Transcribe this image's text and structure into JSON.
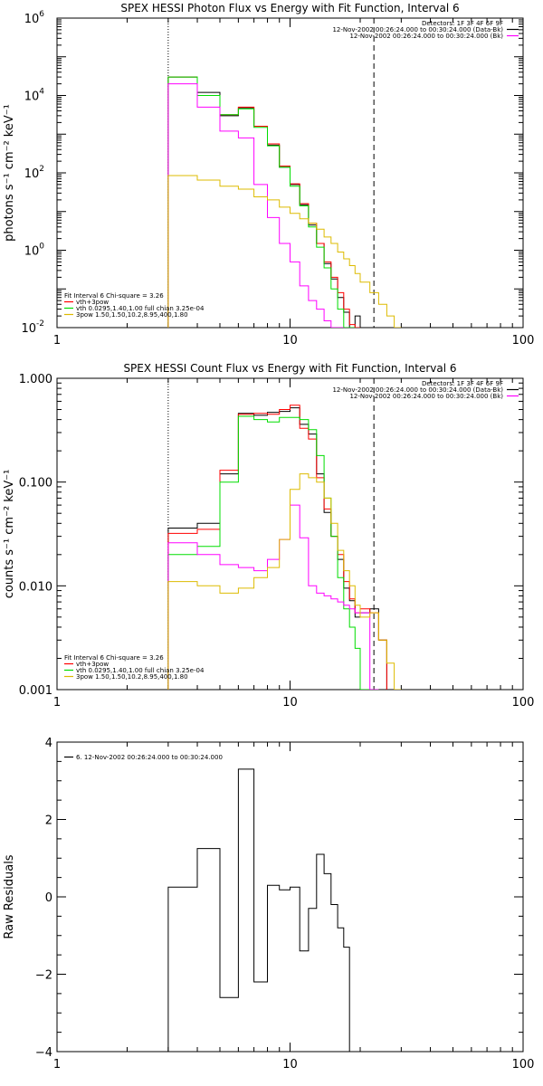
{
  "chart_data": [
    {
      "type": "line",
      "title": "SPEX HESSI Photon Flux vs Energy with Fit Function, Interval 6",
      "ylabel": "photons s⁻¹ cm⁻² keV⁻¹",
      "xlabel": "",
      "xscale": "log",
      "yscale": "log",
      "xlim": [
        1,
        100
      ],
      "ylim": [
        0.01,
        1000000
      ],
      "xticks": [
        {
          "v": 1,
          "label": "1"
        },
        {
          "v": 10,
          "label": "10"
        },
        {
          "v": 100,
          "label": "100"
        }
      ],
      "yticks": [
        {
          "v": 1000000,
          "m": "10",
          "e": "6"
        },
        {
          "v": 10000,
          "m": "10",
          "e": "4"
        },
        {
          "v": 100,
          "m": "10",
          "e": "2"
        },
        {
          "v": 1,
          "m": "10",
          "e": "0"
        },
        {
          "v": 0.01,
          "m": "10",
          "e": "-2"
        }
      ],
      "header": [
        "Detectors: 1F 3F 4F 6F 9F",
        "12-Nov-2002 00:26:24.000 to 00:30:24.000 (Data-Bk)",
        "12-Nov-2002 00:26:24.000 to 00:30:24.000 (Bk)"
      ],
      "header_colors": [
        "",
        "#000000",
        "#ff00ff"
      ],
      "legend": [
        "Fit Interval 6    Chi-square = 3.26",
        "vth+3pow",
        "vth 0.0295,1.40,1.00  full chian 3.25e-04",
        "3pow 1.50,1.50,10.2,8.95,400,1.80"
      ],
      "legend_colors": [
        "",
        "#ff0000",
        "#00dd00",
        "#ddbb00"
      ],
      "vlines": [
        {
          "x": 3.0,
          "style": "dotted"
        },
        {
          "x": 22.9,
          "style": "dashed"
        }
      ],
      "edges": [
        3,
        4,
        5,
        6,
        7,
        8,
        9,
        10,
        11,
        12,
        13,
        14,
        15,
        16,
        17,
        18,
        19,
        20,
        22,
        24,
        26,
        28,
        30
      ],
      "series": [
        {
          "color": "#000000",
          "values": [
            30000,
            12000,
            3000,
            4800,
            1600,
            520,
            140,
            50,
            15,
            4.5,
            1.5,
            0.45,
            0.18,
            0.06,
            0.025,
            0.01,
            0.02,
            null,
            null,
            null,
            null,
            null
          ]
        },
        {
          "color": "#ff0000",
          "values": [
            30000,
            10000,
            3200,
            5000,
            1600,
            560,
            150,
            52,
            16,
            5,
            1.5,
            0.5,
            0.2,
            0.08,
            0.03,
            0.012,
            0.008,
            null,
            null,
            null,
            null,
            null
          ]
        },
        {
          "color": "#00dd00",
          "values": [
            30000,
            10000,
            3200,
            4500,
            1500,
            500,
            140,
            45,
            14,
            4,
            1.2,
            0.35,
            0.1,
            0.03,
            0.01,
            0.004,
            null,
            null,
            null,
            null,
            null,
            null
          ]
        },
        {
          "color": "#ff00ff",
          "values": [
            20000,
            5000,
            1200,
            800,
            50,
            7,
            1.5,
            0.5,
            0.12,
            0.05,
            0.03,
            0.015,
            0.008,
            0.004,
            null,
            null,
            null,
            null,
            null,
            null,
            null,
            null
          ]
        },
        {
          "color": "#ddbb00",
          "values": [
            85,
            65,
            45,
            38,
            24,
            20,
            13,
            9,
            6.5,
            5,
            3.5,
            2.2,
            1.5,
            0.9,
            0.6,
            0.4,
            0.25,
            0.15,
            0.08,
            0.04,
            0.02,
            0.01
          ]
        }
      ]
    },
    {
      "type": "line",
      "title": "SPEX HESSI Count Flux vs Energy with Fit Function, Interval 6",
      "ylabel": "counts s⁻¹ cm⁻² keV⁻¹",
      "xlabel": "",
      "xscale": "log",
      "yscale": "log",
      "xlim": [
        1,
        100
      ],
      "ylim": [
        0.001,
        1
      ],
      "xticks": [
        {
          "v": 1,
          "label": "1"
        },
        {
          "v": 10,
          "label": "10"
        },
        {
          "v": 100,
          "label": "100"
        }
      ],
      "yticks": [
        {
          "v": 1,
          "label": "1.000"
        },
        {
          "v": 0.1,
          "label": "0.100"
        },
        {
          "v": 0.01,
          "label": "0.010"
        },
        {
          "v": 0.001,
          "label": "0.001"
        }
      ],
      "header": [
        "Detectors: 1F 3F 4F 6F 9F",
        "12-Nov-2002 00:26:24.000 to 00:30:24.000 (Data-Bk)",
        "12-Nov-2002 00:26:24.000 to 00:30:24.000 (Bk)"
      ],
      "header_colors": [
        "",
        "#000000",
        "#ff00ff"
      ],
      "legend": [
        "Fit Interval 6    Chi-square = 3.26",
        "vth+3pow",
        "vth 0.0295,1.40,1.00  full chian 3.25e-04",
        "3pow 1.50,1.50,10.2,8.95,400,1.80"
      ],
      "legend_colors": [
        "",
        "#ff0000",
        "#00dd00",
        "#ddbb00"
      ],
      "vlines": [
        {
          "x": 3.0,
          "style": "dotted"
        },
        {
          "x": 22.9,
          "style": "dashed"
        }
      ],
      "edges": [
        3,
        4,
        5,
        6,
        7,
        8,
        9,
        10,
        11,
        12,
        13,
        14,
        15,
        16,
        17,
        18,
        19,
        20,
        22,
        24,
        26,
        28,
        30
      ],
      "series": [
        {
          "color": "#000000",
          "values": [
            0.036,
            0.04,
            0.12,
            0.46,
            0.44,
            0.47,
            0.48,
            0.52,
            0.36,
            0.29,
            0.12,
            0.051,
            0.03,
            0.018,
            0.0095,
            0.0072,
            0.005,
            0.0055,
            0.006,
            0.003,
            null,
            null
          ]
        },
        {
          "color": "#ff0000",
          "values": [
            0.032,
            0.035,
            0.13,
            0.45,
            0.46,
            0.45,
            0.5,
            0.55,
            0.33,
            0.26,
            0.11,
            0.055,
            0.03,
            0.02,
            0.011,
            0.0075,
            0.0055,
            0.006,
            0.0055,
            0.003,
            null,
            null
          ]
        },
        {
          "color": "#00dd00",
          "values": [
            0.02,
            0.024,
            0.1,
            0.43,
            0.4,
            0.38,
            0.42,
            0.42,
            0.4,
            0.32,
            0.18,
            0.07,
            0.03,
            0.012,
            0.006,
            0.004,
            0.0025,
            0.001,
            null,
            null,
            null,
            null
          ]
        },
        {
          "color": "#ff00ff",
          "values": [
            0.026,
            0.02,
            0.016,
            0.015,
            0.014,
            0.018,
            0.028,
            0.06,
            0.029,
            0.01,
            0.0085,
            0.008,
            0.0075,
            0.007,
            0.0065,
            0.006,
            0.0055,
            0.0055,
            0.001,
            null,
            null,
            null
          ]
        },
        {
          "color": "#ddbb00",
          "values": [
            0.011,
            0.01,
            0.0085,
            0.0095,
            0.012,
            0.015,
            0.028,
            0.085,
            0.12,
            0.11,
            0.1,
            0.07,
            0.04,
            0.022,
            0.014,
            0.01,
            0.0065,
            0.005,
            0.0055,
            0.003,
            0.0018,
            0.001
          ]
        }
      ]
    },
    {
      "type": "line",
      "title": "",
      "ylabel": "Raw Residuals",
      "xlabel": "",
      "xscale": "log",
      "yscale": "linear",
      "xlim": [
        1,
        100
      ],
      "ylim": [
        -4,
        4
      ],
      "xticks": [
        {
          "v": 1,
          "label": "1"
        },
        {
          "v": 10,
          "label": "10"
        },
        {
          "v": 100,
          "label": "100"
        }
      ],
      "yticks": [
        {
          "v": 4,
          "label": "4"
        },
        {
          "v": 2,
          "label": "2"
        },
        {
          "v": 0,
          "label": "0"
        },
        {
          "v": -2,
          "label": "−2"
        },
        {
          "v": -4,
          "label": "−4"
        }
      ],
      "legend": [
        "6. 12-Nov-2002 00:26:24.000 to 00:30:24.000"
      ],
      "legend_colors": [
        "#000000"
      ],
      "vlines": [],
      "edges": [
        3,
        4,
        5,
        6,
        7,
        8,
        9,
        10,
        11,
        12,
        13,
        14,
        15,
        16,
        17,
        18,
        19,
        20,
        22
      ],
      "series": [
        {
          "color": "#000000",
          "values": [
            0.25,
            1.25,
            -2.6,
            3.3,
            -2.2,
            0.3,
            0.18,
            0.25,
            -1.4,
            -0.3,
            1.1,
            0.6,
            -0.2,
            -0.8,
            -1.3,
            null,
            null,
            null
          ]
        }
      ]
    }
  ]
}
